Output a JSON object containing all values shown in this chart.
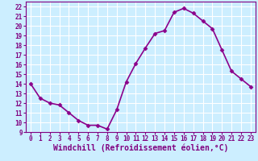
{
  "x": [
    0,
    1,
    2,
    3,
    4,
    5,
    6,
    7,
    8,
    9,
    10,
    11,
    12,
    13,
    14,
    15,
    16,
    17,
    18,
    19,
    20,
    21,
    22,
    23
  ],
  "y": [
    14,
    12.5,
    12,
    11.8,
    11,
    10.2,
    9.7,
    9.7,
    9.3,
    11.3,
    14.2,
    16.1,
    17.7,
    19.2,
    19.5,
    21.4,
    21.8,
    21.3,
    20.5,
    19.7,
    17.5,
    15.3,
    14.5,
    13.7
  ],
  "line_color": "#8B008B",
  "marker": "D",
  "marker_size": 2.5,
  "bg_color": "#cceeff",
  "grid_color": "#ffffff",
  "xlabel": "Windchill (Refroidissement éolien,°C)",
  "ylim": [
    9,
    22.5
  ],
  "xlim": [
    -0.5,
    23.5
  ],
  "yticks": [
    9,
    10,
    11,
    12,
    13,
    14,
    15,
    16,
    17,
    18,
    19,
    20,
    21,
    22
  ],
  "xticks": [
    0,
    1,
    2,
    3,
    4,
    5,
    6,
    7,
    8,
    9,
    10,
    11,
    12,
    13,
    14,
    15,
    16,
    17,
    18,
    19,
    20,
    21,
    22,
    23
  ],
  "tick_color": "#800080",
  "tick_fontsize": 5.5,
  "xlabel_fontsize": 7.0,
  "line_width": 1.2
}
